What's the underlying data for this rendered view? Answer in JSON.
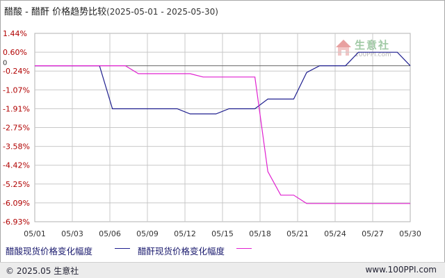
{
  "title": {
    "main": "醋酸 - 醋酐 价格趋势比较",
    "range": "(2025-05-01 - 2025-05-30)"
  },
  "legend": {
    "series1_label": "醋酸现货价格变化幅度",
    "series2_label": "醋酐现货价格变化幅度"
  },
  "footer": {
    "copyright": "© 2025.05 生意社",
    "site": "www.100PPI.com"
  },
  "watermark": {
    "name": "生意社",
    "url": "100PPI.com"
  },
  "colors": {
    "series1": "#1f1f8f",
    "series2": "#e020d0",
    "axis_text": "#b00000",
    "grid": "#c8c8c8"
  },
  "chart_data": {
    "type": "line",
    "x_ticks": [
      "05/01",
      "05/03",
      "05/06",
      "05/09",
      "05/12",
      "05/15",
      "05/18",
      "05/21",
      "05/24",
      "05/27",
      "05/30"
    ],
    "y_ticks": [
      "1.44%",
      "0.60%",
      "-0.24%",
      "-1.07%",
      "-1.91%",
      "-2.75%",
      "-3.58%",
      "-4.42%",
      "-5.25%",
      "-6.09%",
      "-6.93%"
    ],
    "y_zero_label": "0",
    "ylim": [
      -6.93,
      1.44
    ],
    "x_range": [
      "2025-05-01",
      "2025-05-30"
    ],
    "series": [
      {
        "name": "醋酸现货价格变化幅度",
        "points": [
          [
            "2025-05-01",
            0
          ],
          [
            "2025-05-06",
            0
          ],
          [
            "2025-05-07",
            -1.91
          ],
          [
            "2025-05-12",
            -1.91
          ],
          [
            "2025-05-13",
            -2.14
          ],
          [
            "2025-05-15",
            -2.14
          ],
          [
            "2025-05-16",
            -1.91
          ],
          [
            "2025-05-18",
            -1.91
          ],
          [
            "2025-05-19",
            -1.48
          ],
          [
            "2025-05-21",
            -1.48
          ],
          [
            "2025-05-22",
            -0.3
          ],
          [
            "2025-05-23",
            0
          ],
          [
            "2025-05-25",
            0
          ],
          [
            "2025-05-26",
            0.6
          ],
          [
            "2025-05-29",
            0.6
          ],
          [
            "2025-05-30",
            0
          ]
        ]
      },
      {
        "name": "醋酐现货价格变化幅度",
        "points": [
          [
            "2025-05-01",
            0
          ],
          [
            "2025-05-08",
            0
          ],
          [
            "2025-05-09",
            -0.35
          ],
          [
            "2025-05-13",
            -0.35
          ],
          [
            "2025-05-14",
            -0.5
          ],
          [
            "2025-05-18",
            -0.5
          ],
          [
            "2025-05-19",
            -4.7
          ],
          [
            "2025-05-20",
            -5.75
          ],
          [
            "2025-05-21",
            -5.75
          ],
          [
            "2025-05-22",
            -6.12
          ],
          [
            "2025-05-30",
            -6.12
          ]
        ]
      }
    ]
  }
}
